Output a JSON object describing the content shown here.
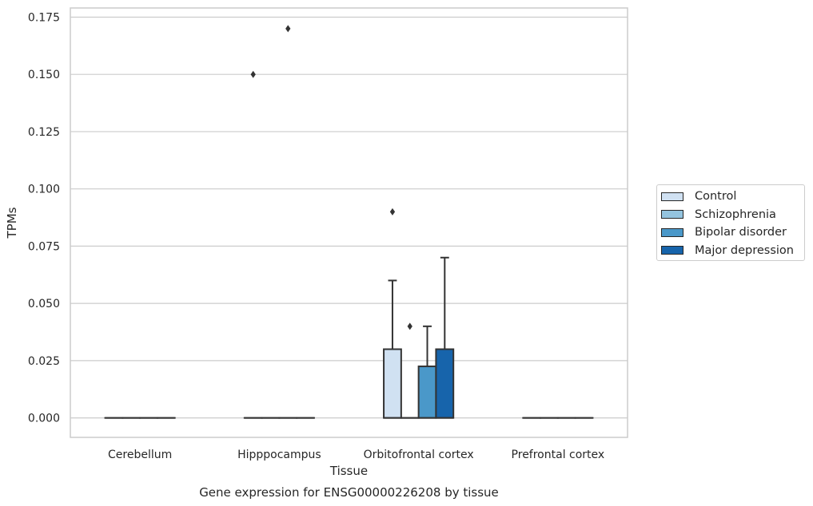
{
  "chart_data": {
    "type": "box",
    "title": "Gene expression for ENSG00000226208 by tissue",
    "xlabel": "Tissue",
    "ylabel": "TPMs",
    "ylim": [
      -0.0085,
      0.179
    ],
    "yticks": [
      0.0,
      0.025,
      0.05,
      0.075,
      0.1,
      0.125,
      0.15,
      0.175
    ],
    "ytick_labels": [
      "0.000",
      "0.025",
      "0.050",
      "0.075",
      "0.100",
      "0.125",
      "0.150",
      "0.175"
    ],
    "grid": true,
    "legend_position": "outside-right",
    "categories": [
      "Cerebellum",
      "Hipppocampus",
      "Orbitofrontal cortex",
      "Prefrontal cortex"
    ],
    "series": [
      {
        "name": "Control",
        "color": "#d0e1f2",
        "boxes": [
          {
            "min": 0,
            "q1": 0,
            "median": 0,
            "q3": 0,
            "max": 0,
            "outliers": []
          },
          {
            "min": 0,
            "q1": 0,
            "median": 0,
            "q3": 0,
            "max": 0,
            "outliers": [
              0.15
            ]
          },
          {
            "min": 0,
            "q1": 0,
            "median": 0,
            "q3": 0.03,
            "max": 0.06,
            "outliers": [
              0.09
            ]
          },
          {
            "min": 0,
            "q1": 0,
            "median": 0,
            "q3": 0,
            "max": 0,
            "outliers": []
          }
        ]
      },
      {
        "name": "Schizophrenia",
        "color": "#94c4df",
        "boxes": [
          {
            "min": 0,
            "q1": 0,
            "median": 0,
            "q3": 0,
            "max": 0,
            "outliers": []
          },
          {
            "min": 0,
            "q1": 0,
            "median": 0,
            "q3": 0,
            "max": 0,
            "outliers": []
          },
          {
            "min": 0,
            "q1": 0,
            "median": 0,
            "q3": 0,
            "max": 0,
            "outliers": [
              0.04
            ]
          },
          {
            "min": 0,
            "q1": 0,
            "median": 0,
            "q3": 0,
            "max": 0,
            "outliers": []
          }
        ]
      },
      {
        "name": "Bipolar disorder",
        "color": "#4a98c9",
        "boxes": [
          {
            "min": 0,
            "q1": 0,
            "median": 0,
            "q3": 0,
            "max": 0,
            "outliers": []
          },
          {
            "min": 0,
            "q1": 0,
            "median": 0,
            "q3": 0,
            "max": 0,
            "outliers": [
              0.17
            ]
          },
          {
            "min": 0,
            "q1": 0,
            "median": 0,
            "q3": 0.0225,
            "max": 0.04,
            "outliers": []
          },
          {
            "min": 0,
            "q1": 0,
            "median": 0,
            "q3": 0,
            "max": 0,
            "outliers": []
          }
        ]
      },
      {
        "name": "Major depression",
        "color": "#1764ab",
        "boxes": [
          {
            "min": 0,
            "q1": 0,
            "median": 0,
            "q3": 0,
            "max": 0,
            "outliers": []
          },
          {
            "min": 0,
            "q1": 0,
            "median": 0,
            "q3": 0,
            "max": 0,
            "outliers": []
          },
          {
            "min": 0,
            "q1": 0,
            "median": 0,
            "q3": 0.03,
            "max": 0.07,
            "outliers": []
          },
          {
            "min": 0,
            "q1": 0,
            "median": 0,
            "q3": 0,
            "max": 0,
            "outliers": []
          }
        ]
      }
    ]
  }
}
